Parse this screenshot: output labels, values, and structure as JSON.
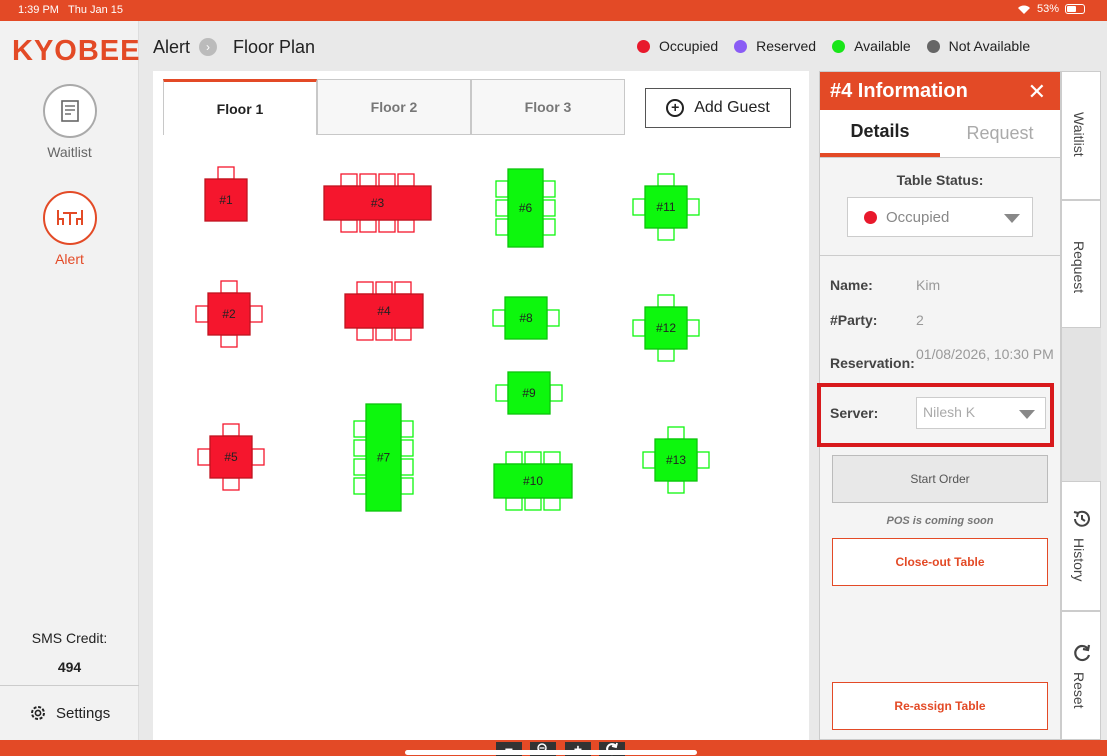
{
  "status_bar": {
    "time": "1:39 PM",
    "date": "Thu Jan 15",
    "battery": "53%"
  },
  "sidebar": {
    "logo": "KYOBEE",
    "items": [
      {
        "label": "Waitlist",
        "icon": "document-icon"
      },
      {
        "label": "Alert",
        "icon": "table-chairs-icon"
      }
    ],
    "sms_label": "SMS Credit:",
    "sms_value": "494",
    "settings_label": "Settings"
  },
  "header": {
    "breadcrumb_alert": "Alert",
    "breadcrumb_page": "Floor Plan",
    "legend": [
      {
        "label": "Occupied",
        "color": "#e8192c"
      },
      {
        "label": "Reserved",
        "color": "#8a5cf5"
      },
      {
        "label": "Available",
        "color": "#19e619"
      },
      {
        "label": "Not Available",
        "color": "#666666"
      }
    ]
  },
  "floor": {
    "tabs": [
      "Floor 1",
      "Floor 2",
      "Floor 3"
    ],
    "active_tab": 0,
    "add_guest_label": "Add Guest",
    "colors": {
      "occupied": "#f5162d",
      "available": "#0df70d"
    },
    "tables": [
      {
        "label": "#1",
        "status": "occupied"
      },
      {
        "label": "#2",
        "status": "occupied"
      },
      {
        "label": "#3",
        "status": "occupied"
      },
      {
        "label": "#4",
        "status": "occupied"
      },
      {
        "label": "#5",
        "status": "occupied"
      },
      {
        "label": "#6",
        "status": "available"
      },
      {
        "label": "#7",
        "status": "available"
      },
      {
        "label": "#8",
        "status": "available"
      },
      {
        "label": "#9",
        "status": "available"
      },
      {
        "label": "#10",
        "status": "available"
      },
      {
        "label": "#11",
        "status": "available"
      },
      {
        "label": "#12",
        "status": "available"
      },
      {
        "label": "#13",
        "status": "available"
      }
    ]
  },
  "info": {
    "title": "#4 Information",
    "tabs": [
      "Details",
      "Request"
    ],
    "table_status_label": "Table Status:",
    "table_status_value": "Occupied",
    "name_label": "Name:",
    "name_value": "Kim",
    "party_label": "#Party:",
    "party_value": "2",
    "reservation_label": "Reservation:",
    "reservation_value": "01/08/2026, 10:30 PM",
    "server_label": "Server:",
    "server_value": "Nilesh K",
    "start_order": "Start Order",
    "pos_soon": "POS is coming soon",
    "close_out": "Close-out Table",
    "reassign": "Re-assign Table"
  },
  "right_tabs": {
    "waitlist": "Waitlist",
    "request": "Request",
    "history": "History",
    "reset": "Reset"
  },
  "zoom_controls": [
    "−",
    "+"
  ]
}
